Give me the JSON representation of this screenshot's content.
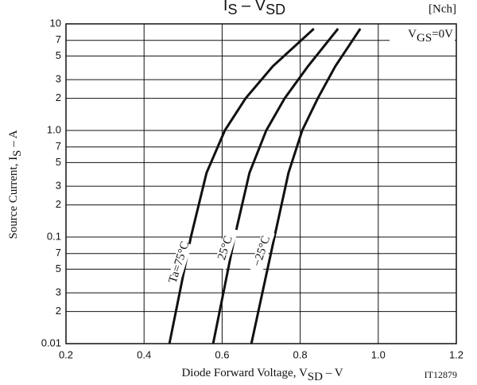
{
  "chart_data": {
    "type": "line",
    "title": [
      "I",
      "S",
      " – V",
      "SD"
    ],
    "x_label": [
      "Diode Forward Voltage, V",
      "SD",
      " – V"
    ],
    "y_label": [
      "Source Current, I",
      "S",
      " – A"
    ],
    "annotations": {
      "channel": "[Nch]",
      "condition": [
        "V",
        "GS",
        "=0V"
      ],
      "code": "IT12879"
    },
    "log_y": true,
    "grid": true,
    "xlim": [
      0.2,
      1.2
    ],
    "xticks": [
      0.2,
      0.4,
      0.6,
      0.8,
      {
        "value": 1.0,
        "label": "1.0"
      },
      1.2
    ],
    "ylim": [
      0.01,
      10
    ],
    "yticks": [
      0.01,
      {
        "value": 0.02,
        "label": "2"
      },
      {
        "value": 0.03,
        "label": "3"
      },
      {
        "value": 0.05,
        "label": "5"
      },
      {
        "value": 0.07,
        "label": "7"
      },
      0.1,
      {
        "value": 0.2,
        "label": "2"
      },
      {
        "value": 0.3,
        "label": "3"
      },
      {
        "value": 0.5,
        "label": "5"
      },
      {
        "value": 0.7,
        "label": "7"
      },
      {
        "value": 1.0,
        "label": "1.0"
      },
      {
        "value": 2,
        "label": "2"
      },
      {
        "value": 3,
        "label": "3"
      },
      {
        "value": 5,
        "label": "5"
      },
      {
        "value": 7,
        "label": "7"
      },
      10
    ],
    "series": [
      {
        "name": "Ta=75°C",
        "color": "#111111",
        "x": [
          0.465,
          0.52,
          0.56,
          0.607,
          0.66,
          0.73,
          0.835
        ],
        "values": [
          0.01,
          0.1,
          0.4,
          1.0,
          2,
          4,
          9
        ]
      },
      {
        "name": "25°C",
        "color": "#111111",
        "x": [
          0.577,
          0.632,
          0.67,
          0.713,
          0.76,
          0.82,
          0.897
        ],
        "values": [
          0.01,
          0.1,
          0.4,
          1.0,
          2,
          4,
          9
        ]
      },
      {
        "name": "−25°C",
        "color": "#111111",
        "x": [
          0.675,
          0.734,
          0.77,
          0.805,
          0.845,
          0.89,
          0.954
        ],
        "values": [
          0.01,
          0.1,
          0.4,
          1.0,
          2,
          4,
          9
        ]
      }
    ]
  }
}
